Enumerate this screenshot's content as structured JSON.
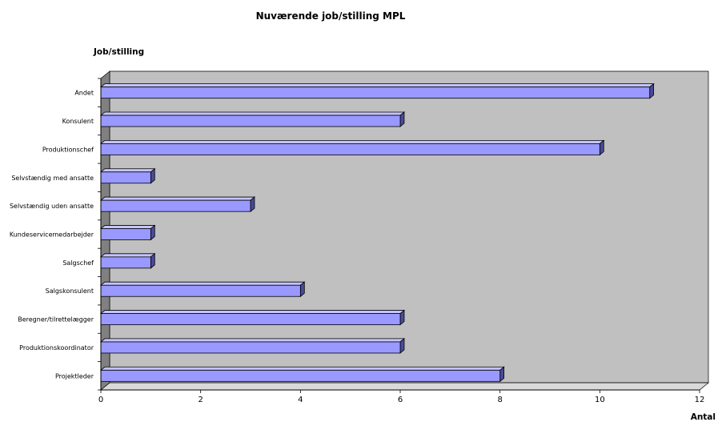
{
  "chart_data": {
    "type": "bar",
    "orientation": "horizontal",
    "style": "3d",
    "title": "Nuværende job/stilling MPL",
    "ylabel": "Job/stilling",
    "xlabel": "Antal",
    "categories": [
      "Andet",
      "Konsulent",
      "Produktionschef",
      "Selvstændig med ansatte",
      "Selvstændig uden ansatte",
      "Kundeservicemedarbejder",
      "Salgschef",
      "Salgskonsulent",
      "Beregner/tilrettelægger",
      "Produktionskoordinator",
      "Projektleder"
    ],
    "values": [
      11,
      6,
      10,
      1,
      3,
      1,
      1,
      4,
      6,
      6,
      8
    ],
    "xlim": [
      0,
      12
    ],
    "xticks": [
      "0",
      "2",
      "4",
      "6",
      "8",
      "10",
      "12"
    ],
    "grid": false,
    "legend": "none",
    "colors": {
      "bar_front": "#9999ff",
      "bar_top": "#c4c4ff",
      "bar_side": "#4a4a9a",
      "back_wall": "#c0c0c0",
      "left_wall": "#808080",
      "floor": "#d9d9d9"
    }
  }
}
